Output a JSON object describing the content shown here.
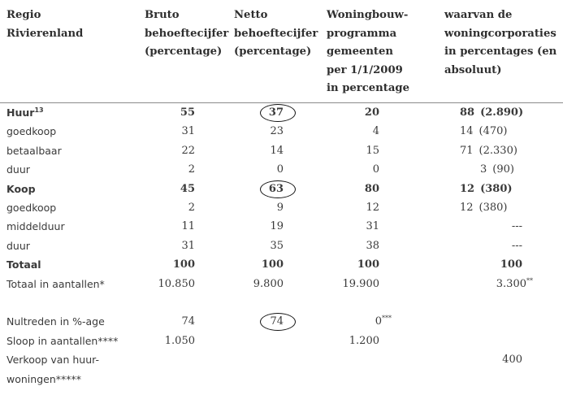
{
  "headers": {
    "col0": [
      "Regio",
      "Rivierenland"
    ],
    "col1": [
      "Bruto",
      "behoeftecijfer",
      "(percentage)"
    ],
    "col2": [
      "Netto",
      "behoeftecijfer",
      "(percentage)"
    ],
    "col3": [
      "Woningbouw-",
      "programma",
      "gemeenten",
      "per 1/1/2009",
      "in percentage"
    ],
    "col4": [
      "waarvan de",
      "woningcorporaties",
      "in percentages (en",
      "absoluut)"
    ]
  },
  "rows": [
    {
      "label": "Huur",
      "label_sup": "13",
      "bold": true,
      "c1": "55",
      "c2": "37",
      "c3": "20",
      "c4": "88",
      "c4b": "(2.890)"
    },
    {
      "label": "goedkoop",
      "bold": false,
      "c1": "31",
      "c2": "23",
      "c3": "4",
      "c4": "14",
      "c4b": "(470)"
    },
    {
      "label": "betaalbaar",
      "bold": false,
      "c1": "22",
      "c2": "14",
      "c3": "15",
      "c4": "71",
      "c4b": "(2.330)"
    },
    {
      "label": "duur",
      "bold": false,
      "c1": "2",
      "c2": "0",
      "c3": "0",
      "c4": "3",
      "c4b": "(90)"
    },
    {
      "label": "Koop",
      "bold": true,
      "c1": "45",
      "c2": "63",
      "c3": "80",
      "c4": "12",
      "c4b": "(380)"
    },
    {
      "label": "goedkoop",
      "bold": false,
      "c1": "2",
      "c2": "9",
      "c3": "12",
      "c4": "12",
      "c4b": "(380)"
    },
    {
      "label": "middelduur",
      "bold": false,
      "c1": "11",
      "c2": "19",
      "c3": "31",
      "c4": "---",
      "c4b": ""
    },
    {
      "label": "duur",
      "bold": false,
      "c1": "31",
      "c2": "35",
      "c3": "38",
      "c4": "---",
      "c4b": ""
    },
    {
      "label": "Totaal",
      "bold": true,
      "c1": "100",
      "c2": "100",
      "c3": "100",
      "c4": "100",
      "c4b": ""
    },
    {
      "label": "Totaal in aantallen*",
      "bold": false,
      "c1": "10.850",
      "c2": "9.800",
      "c3": "19.900",
      "c4": "3.300",
      "c4_sup": "**",
      "c4b": ""
    }
  ],
  "extra_rows": [
    {
      "label": "Nultreden in %-age",
      "c1": "74",
      "c2": "74",
      "c3": "0",
      "c3_sup": "***",
      "c4": ""
    },
    {
      "label": "Sloop in aantallen****",
      "c1": "1.050",
      "c2": "",
      "c3": "1.200",
      "c4": ""
    },
    {
      "label": "Verkoop van huur-",
      "c1": "",
      "c2": "",
      "c3": "",
      "c4": "400"
    },
    {
      "label": "woningen*****",
      "c1": "",
      "c2": "",
      "c3": "",
      "c4": ""
    }
  ],
  "circled_values": [
    "37",
    "63",
    "74"
  ]
}
